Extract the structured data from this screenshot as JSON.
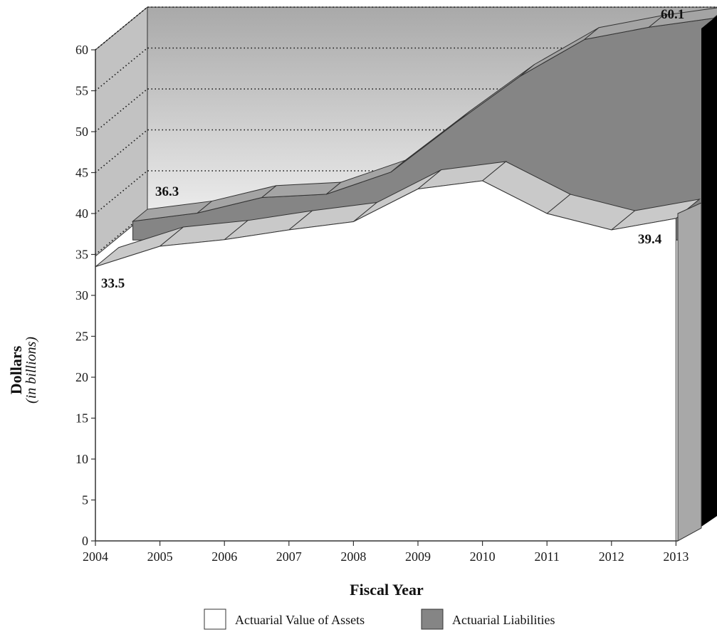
{
  "chart_data": {
    "type": "area",
    "x": [
      2004,
      2005,
      2006,
      2007,
      2008,
      2009,
      2010,
      2011,
      2012,
      2013
    ],
    "series": [
      {
        "name": "Actuarial Value of Assets",
        "values": [
          33.5,
          36.0,
          36.8,
          38.0,
          39.0,
          43.0,
          44.0,
          40.0,
          38.0,
          39.4
        ],
        "color": "#ffffff"
      },
      {
        "name": "Actuarial Liabilities",
        "values": [
          35.3,
          36.3,
          38.2,
          38.6,
          41.3,
          47.3,
          53.0,
          57.5,
          59.0,
          60.1
        ],
        "color": "#858585"
      }
    ],
    "xlabel": "Fiscal Year",
    "ylabel": "Dollars",
    "ylabel_sub": "(in billions)",
    "ylim": [
      0,
      60
    ],
    "yticks": [
      0,
      5,
      10,
      15,
      20,
      25,
      30,
      35,
      40,
      45,
      50,
      55,
      60
    ],
    "xticks": [
      "2004",
      "2005",
      "2006",
      "2007",
      "2008",
      "2009",
      "2010",
      "2011",
      "2012",
      "2013"
    ],
    "annotations": [
      "33.5",
      "36.3",
      "39.4",
      "60.1"
    ],
    "grid": "dotted, back wall from 35 to 60",
    "legend_position": "bottom-center",
    "style": "3d"
  }
}
